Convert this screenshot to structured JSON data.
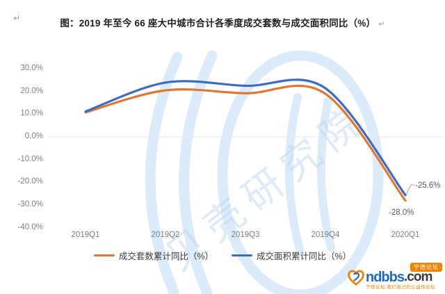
{
  "page": {
    "para_mark": "↵"
  },
  "title": {
    "text": "图：2019 年至今 66 座大中城市合计各季度成交套数与成交面积同比（%）"
  },
  "chart_data": {
    "type": "line",
    "title": "2019 年至今 66 座大中城市合计各季度成交套数与成交面积同比（%）",
    "categories": [
      "2019Q1",
      "2019Q2",
      "2019Q3",
      "2019Q4",
      "2020Q1"
    ],
    "series": [
      {
        "name": "成交套数累计同比（%）",
        "color": "#e2762f",
        "values": [
          10.8,
          20.5,
          19.2,
          19.0,
          -28.0
        ],
        "end_label": "-28.0%"
      },
      {
        "name": "成交面积累计同比（%）",
        "color": "#3b6bc7",
        "values": [
          11.2,
          23.9,
          22.5,
          21.4,
          -25.6
        ],
        "end_label": "-25.6%"
      }
    ],
    "y_ticks": [
      "30.0%",
      "20.0%",
      "10.0%",
      "0.0%",
      "-10.0%",
      "-20.0%",
      "-30.0%",
      "-40.0%"
    ],
    "ylim": [
      -40,
      30
    ],
    "xlabel": "",
    "ylabel": "",
    "smooth": true,
    "gridlines": [
      "0.0%"
    ],
    "legend_position": "bottom",
    "grid_color": "#e9e9e9",
    "leader_color": "#a6a6a6"
  },
  "watermark": {
    "text": "贝壳研究院",
    "color": "#cfe2f5"
  },
  "logo": {
    "brand": "ndbbs",
    "tld": ".com",
    "badge": "宁德论坛",
    "tagline": "宁德论坛,我们自己的公益性论坛",
    "heart_orange": "#f08300",
    "heart_blue": "#2b6cb8"
  }
}
